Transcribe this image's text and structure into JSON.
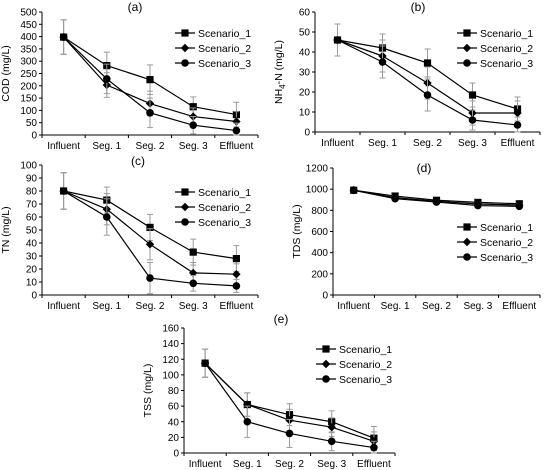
{
  "chart_data": [
    {
      "type": "line",
      "panel_label": "(a)",
      "ylabel": "COD (mg/L)",
      "ylabel_sub": "",
      "ylabel_rest": "",
      "categories": [
        "Influent",
        "Seg. 1",
        "Seg. 2",
        "Seg. 3",
        "Effluent"
      ],
      "ylim": [
        0,
        500
      ],
      "yticks": [
        0,
        50,
        100,
        150,
        200,
        250,
        300,
        350,
        400,
        450,
        500
      ],
      "legend_position": "top-right",
      "error_bars": true,
      "series": [
        {
          "name": "Scenario_1",
          "marker": "square",
          "values": [
            398,
            282,
            225,
            115,
            83
          ],
          "errors": [
            70,
            55,
            60,
            40,
            50
          ]
        },
        {
          "name": "Scenario_2",
          "marker": "diamond",
          "values": [
            398,
            203,
            128,
            75,
            55
          ],
          "errors": [
            70,
            50,
            50,
            35,
            40
          ]
        },
        {
          "name": "Scenario_3",
          "marker": "circle",
          "values": [
            398,
            228,
            90,
            40,
            18
          ],
          "errors": [
            70,
            60,
            60,
            35,
            30
          ]
        }
      ]
    },
    {
      "type": "line",
      "panel_label": "(b)",
      "ylabel": "NH",
      "ylabel_sub": "4",
      "ylabel_rest": "-N (mg/L)",
      "categories": [
        "Influent",
        "Seg. 1",
        "Seg. 2",
        "Seg. 3",
        "Effluent"
      ],
      "ylim": [
        0,
        60
      ],
      "yticks": [
        0,
        10,
        20,
        30,
        40,
        50,
        60
      ],
      "legend_position": "top-right",
      "error_bars": true,
      "series": [
        {
          "name": "Scenario_1",
          "marker": "square",
          "values": [
            46,
            42,
            34.5,
            18.5,
            11.5
          ],
          "errors": [
            8,
            7,
            7,
            6,
            6
          ]
        },
        {
          "name": "Scenario_2",
          "marker": "diamond",
          "values": [
            46,
            38,
            24.5,
            9.5,
            9.5
          ],
          "errors": [
            8,
            8,
            8,
            6,
            6
          ]
        },
        {
          "name": "Scenario_3",
          "marker": "circle",
          "values": [
            46,
            35,
            18.5,
            6,
            3.5
          ],
          "errors": [
            8,
            8,
            8,
            5,
            4
          ]
        }
      ]
    },
    {
      "type": "line",
      "panel_label": "(c)",
      "ylabel": "TN (mg/L)",
      "ylabel_sub": "",
      "ylabel_rest": "",
      "categories": [
        "Influent",
        "Seg. 1",
        "Seg. 2",
        "Seg. 3",
        "Effluent"
      ],
      "ylim": [
        0,
        100
      ],
      "yticks": [
        0,
        10,
        20,
        30,
        40,
        50,
        60,
        70,
        80,
        90,
        100
      ],
      "legend_position": "top-right",
      "error_bars": true,
      "series": [
        {
          "name": "Scenario_1",
          "marker": "square",
          "values": [
            80,
            73,
            52,
            33,
            28
          ],
          "errors": [
            14,
            10,
            10,
            10,
            10
          ]
        },
        {
          "name": "Scenario_2",
          "marker": "diamond",
          "values": [
            80,
            66,
            39,
            17,
            16
          ],
          "errors": [
            14,
            12,
            12,
            8,
            8
          ]
        },
        {
          "name": "Scenario_3",
          "marker": "circle",
          "values": [
            80,
            60,
            13,
            9,
            7
          ],
          "errors": [
            14,
            14,
            12,
            6,
            5
          ]
        }
      ]
    },
    {
      "type": "line",
      "panel_label": "(d)",
      "ylabel": "TDS (mg/L)",
      "ylabel_sub": "",
      "ylabel_rest": "",
      "categories": [
        "Influent",
        "Seg. 1",
        "Seg. 2",
        "Seg. 3",
        "Effluent"
      ],
      "ylim": [
        0,
        1200
      ],
      "yticks": [
        0,
        200,
        400,
        600,
        800,
        1000,
        1200
      ],
      "legend_position": "center-right",
      "error_bars": true,
      "series": [
        {
          "name": "Scenario_1",
          "marker": "square",
          "values": [
            990,
            935,
            895,
            875,
            862
          ],
          "errors": [
            15,
            15,
            15,
            15,
            15
          ]
        },
        {
          "name": "Scenario_2",
          "marker": "diamond",
          "values": [
            990,
            920,
            885,
            860,
            850
          ],
          "errors": [
            15,
            15,
            15,
            15,
            15
          ]
        },
        {
          "name": "Scenario_3",
          "marker": "circle",
          "values": [
            990,
            910,
            878,
            845,
            838
          ],
          "errors": [
            15,
            15,
            15,
            15,
            15
          ]
        }
      ]
    },
    {
      "type": "line",
      "panel_label": "(e)",
      "ylabel": "TSS (mg/L)",
      "ylabel_sub": "",
      "ylabel_rest": "",
      "categories": [
        "Influent",
        "Seg. 1",
        "Seg. 2",
        "Seg. 3",
        "Effluent"
      ],
      "ylim": [
        0,
        160
      ],
      "yticks": [
        0,
        20,
        40,
        60,
        80,
        100,
        120,
        140,
        160
      ],
      "legend_position": "top-right",
      "error_bars": true,
      "series": [
        {
          "name": "Scenario_1",
          "marker": "square",
          "values": [
            115,
            62,
            49,
            40,
            19
          ],
          "errors": [
            18,
            15,
            14,
            14,
            15
          ]
        },
        {
          "name": "Scenario_2",
          "marker": "diamond",
          "values": [
            115,
            62,
            42,
            33,
            15
          ],
          "errors": [
            18,
            15,
            14,
            12,
            12
          ]
        },
        {
          "name": "Scenario_3",
          "marker": "circle",
          "values": [
            115,
            40,
            25,
            15,
            7
          ],
          "errors": [
            18,
            20,
            18,
            12,
            8
          ]
        }
      ]
    }
  ]
}
